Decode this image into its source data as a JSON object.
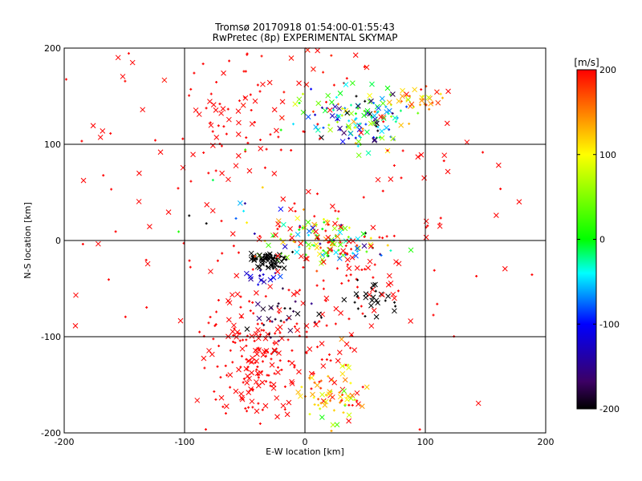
{
  "chart_data": {
    "type": "scatter",
    "title": "Tromsø 20170918 01:54:00-01:55:43",
    "subtitle": "RwPretec (8p) EXPERIMENTAL SKYMAP",
    "xlabel": "E-W location [km]",
    "ylabel": "N-S location [km]",
    "xlim": [
      -200,
      200
    ],
    "ylim": [
      -200,
      200
    ],
    "x_ticks": [
      "-200",
      "-100",
      "0",
      "100",
      "200"
    ],
    "y_ticks": [
      "-200",
      "-100",
      "0",
      "100",
      "200"
    ],
    "grid": true,
    "colorbar": {
      "label": "[m/s]",
      "range": [
        -200,
        200
      ],
      "ticks": [
        "-200",
        "-100",
        "0",
        "100",
        "200"
      ],
      "colors": [
        "#000000",
        "#5a0078",
        "#0000ff",
        "#00ffff",
        "#00ff00",
        "#ffff00",
        "#ff0000"
      ]
    },
    "markers": {
      "plus": "+",
      "cross": "x"
    },
    "clusters": [
      {
        "cx": -60,
        "cy": 130,
        "sx": 22,
        "sy": 30,
        "n": 45,
        "v": 200,
        "vs": 0
      },
      {
        "cx": -20,
        "cy": 170,
        "sx": 45,
        "sy": 20,
        "n": 25,
        "v": 195,
        "vs": 5
      },
      {
        "cx": 45,
        "cy": 125,
        "sx": 22,
        "sy": 15,
        "n": 150,
        "v": -40,
        "vs": 110
      },
      {
        "cx": 95,
        "cy": 148,
        "sx": 10,
        "sy": 5,
        "n": 30,
        "v": 150,
        "vs": 40
      },
      {
        "cx": 100,
        "cy": 75,
        "sx": 20,
        "sy": 45,
        "n": 18,
        "v": 200,
        "vs": 0
      },
      {
        "cx": 15,
        "cy": 0,
        "sx": 25,
        "sy": 12,
        "n": 130,
        "v": 50,
        "vs": 110
      },
      {
        "cx": -30,
        "cy": -20,
        "sx": 8,
        "sy": 4,
        "n": 70,
        "v": -200,
        "vs": 0
      },
      {
        "cx": -30,
        "cy": -38,
        "sx": 10,
        "sy": 4,
        "n": 15,
        "v": -120,
        "vs": 20
      },
      {
        "cx": 40,
        "cy": -35,
        "sx": 25,
        "sy": 30,
        "n": 50,
        "v": 200,
        "vs": 0
      },
      {
        "cx": 55,
        "cy": -60,
        "sx": 12,
        "sy": 10,
        "n": 25,
        "v": -200,
        "vs": 0
      },
      {
        "cx": -20,
        "cy": -75,
        "sx": 15,
        "sy": 12,
        "n": 30,
        "v": -180,
        "vs": 20
      },
      {
        "cx": -45,
        "cy": -120,
        "sx": 22,
        "sy": 35,
        "n": 190,
        "v": 200,
        "vs": 0
      },
      {
        "cx": 25,
        "cy": -125,
        "sx": 18,
        "sy": 30,
        "n": 40,
        "v": 200,
        "vs": 0
      },
      {
        "cx": 20,
        "cy": -160,
        "sx": 12,
        "sy": 15,
        "n": 60,
        "v": 110,
        "vs": 40
      },
      {
        "cx": 0,
        "cy": 0,
        "sx": 95,
        "sy": 100,
        "n": 130,
        "v": 200,
        "vs": 0
      },
      {
        "cx": -150,
        "cy": 130,
        "sx": 35,
        "sy": 50,
        "n": 18,
        "v": 200,
        "vs": 0
      },
      {
        "cx": -60,
        "cy": 20,
        "sx": 20,
        "sy": 40,
        "n": 15,
        "v": 20,
        "vs": 140
      }
    ]
  }
}
